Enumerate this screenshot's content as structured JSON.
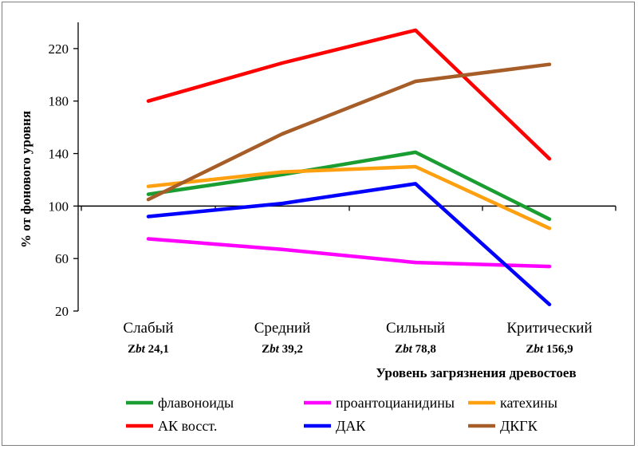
{
  "chart_data": {
    "type": "line",
    "categories": [
      "Слабый",
      "Средний",
      "Сильный",
      "Критический"
    ],
    "category_sublabels": [
      {
        "prefix": "Z",
        "italic": "bt",
        "value": " 24,1"
      },
      {
        "prefix": "Z",
        "italic": "bt",
        "value": " 39,2"
      },
      {
        "prefix": "Z",
        "italic": "bt",
        "value": " 78,8"
      },
      {
        "prefix": "Z",
        "italic": "bt",
        "value": " 156,9"
      }
    ],
    "series": [
      {
        "name": "флавоноиды",
        "color": "#1a9e32",
        "values": [
          109,
          124,
          141,
          90
        ]
      },
      {
        "name": "проантоцианидины",
        "color": "#ff00ff",
        "values": [
          75,
          67,
          57,
          54
        ]
      },
      {
        "name": "катехины",
        "color": "#ffa010",
        "values": [
          115,
          126,
          130,
          83
        ]
      },
      {
        "name": "АК восст.",
        "color": "#ff0000",
        "values": [
          180,
          209,
          234,
          136
        ]
      },
      {
        "name": "ДАК",
        "color": "#0000ff",
        "values": [
          92,
          102,
          117,
          25
        ]
      },
      {
        "name": "ДКГК",
        "color": "#a65d28",
        "values": [
          105,
          155,
          195,
          208
        ]
      }
    ],
    "xlabel": "Уровень загрязнения древостоев",
    "ylabel": "% от фонового уровня",
    "ylim": [
      20,
      240
    ],
    "yticks": [
      20,
      60,
      100,
      140,
      180,
      220
    ],
    "x_axis_crosses_at": 100,
    "grid": false,
    "legend_position": "bottom"
  }
}
